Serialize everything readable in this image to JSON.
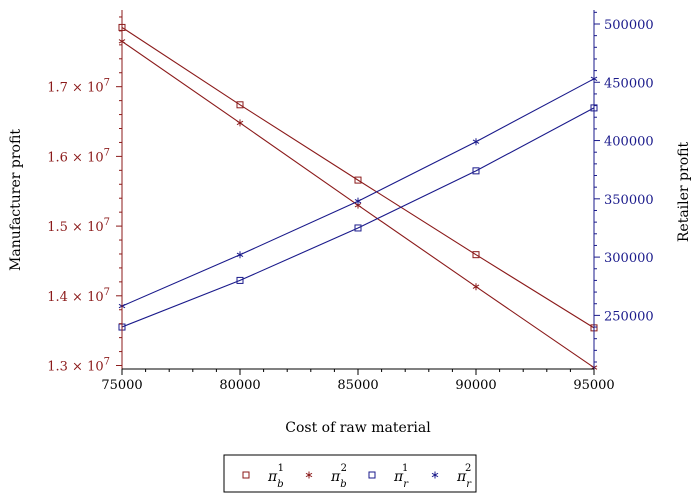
{
  "colors": {
    "manufacturer": "#8B1A1A",
    "retailer": "#1A1A8B",
    "axis": "#000000",
    "legend_border": "#000000"
  },
  "chart_data": {
    "type": "line",
    "xlabel": "Cost of raw material",
    "ylabel_left": "Manufacturer profit",
    "ylabel_right": "Retailer profit",
    "xlim": [
      75000,
      95000
    ],
    "ylim_left": [
      12950000,
      18100000
    ],
    "ylim_right": [
      204000,
      512000
    ],
    "x_ticks": [
      75000,
      80000,
      85000,
      90000,
      95000
    ],
    "x_tick_labels": [
      "75000",
      "80000",
      "85000",
      "90000",
      "95000"
    ],
    "y_left_ticks": [
      {
        "value": 13000000,
        "mantissa": "1.3",
        "base": "10",
        "exp": "7"
      },
      {
        "value": 14000000,
        "mantissa": "1.4",
        "base": "10",
        "exp": "7"
      },
      {
        "value": 15000000,
        "mantissa": "1.5",
        "base": "10",
        "exp": "7"
      },
      {
        "value": 16000000,
        "mantissa": "1.6",
        "base": "10",
        "exp": "7"
      },
      {
        "value": 17000000,
        "mantissa": "1.7",
        "base": "10",
        "exp": "7"
      }
    ],
    "y_right_ticks": [
      250000,
      300000,
      350000,
      400000,
      450000,
      500000
    ],
    "y_right_tick_labels": [
      "250000",
      "300000",
      "350000",
      "400000",
      "450000",
      "500000"
    ],
    "legend_position": "bottom",
    "series": [
      {
        "name": "π_b^1",
        "sym": "π",
        "sub": "b",
        "sup": "1",
        "axis": "left",
        "marker": "square",
        "color": "#8B1A1A",
        "x": [
          75000,
          80000,
          85000,
          90000,
          95000
        ],
        "values": [
          17850000,
          16740000,
          15660000,
          14590000,
          13540000
        ]
      },
      {
        "name": "π_b^2",
        "sym": "π",
        "sub": "b",
        "sup": "2",
        "axis": "left",
        "marker": "star",
        "color": "#8B1A1A",
        "x": [
          75000,
          80000,
          85000,
          90000,
          95000
        ],
        "values": [
          17650000,
          16480000,
          15300000,
          14130000,
          12970000
        ]
      },
      {
        "name": "π_r^1",
        "sym": "π",
        "sub": "r",
        "sup": "1",
        "axis": "right",
        "marker": "square",
        "color": "#1A1A8B",
        "x": [
          75000,
          80000,
          85000,
          90000,
          95000
        ],
        "values": [
          240000,
          280000,
          325000,
          374000,
          428000
        ]
      },
      {
        "name": "π_r^2",
        "sym": "π",
        "sub": "r",
        "sup": "2",
        "axis": "right",
        "marker": "star",
        "color": "#1A1A8B",
        "x": [
          75000,
          80000,
          85000,
          90000,
          95000
        ],
        "values": [
          258000,
          302000,
          348000,
          399000,
          453000
        ]
      }
    ]
  }
}
